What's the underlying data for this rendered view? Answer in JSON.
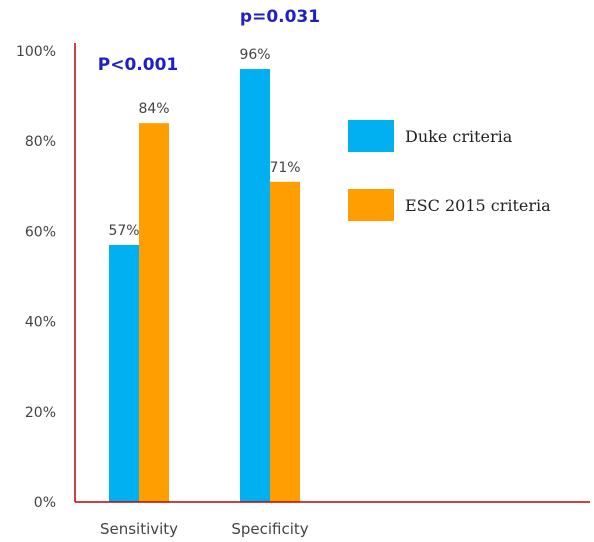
{
  "chart_data": {
    "type": "bar",
    "categories": [
      "Sensitivity",
      "Specificity"
    ],
    "series": [
      {
        "name": "Duke criteria",
        "values": [
          57,
          96
        ],
        "color": "#00b0f0"
      },
      {
        "name": "ESC 2015 criteria",
        "values": [
          84,
          71
        ],
        "color": "#ff9e00"
      }
    ],
    "data_labels": [
      [
        "57%",
        "96%"
      ],
      [
        "84%",
        "71%"
      ]
    ],
    "ylim": [
      0,
      100
    ],
    "yticks": [
      "0%",
      "20%",
      "40%",
      "60%",
      "80%",
      "100%"
    ],
    "annotations": [
      {
        "category": "Sensitivity",
        "text": "P<0.001"
      },
      {
        "category": "Specificity",
        "text": "p=0.031"
      }
    ],
    "axis_color": "#c00000",
    "annotation_color": "#1f1fc8",
    "legend_position": "right",
    "title": "",
    "xlabel": "",
    "ylabel": ""
  }
}
